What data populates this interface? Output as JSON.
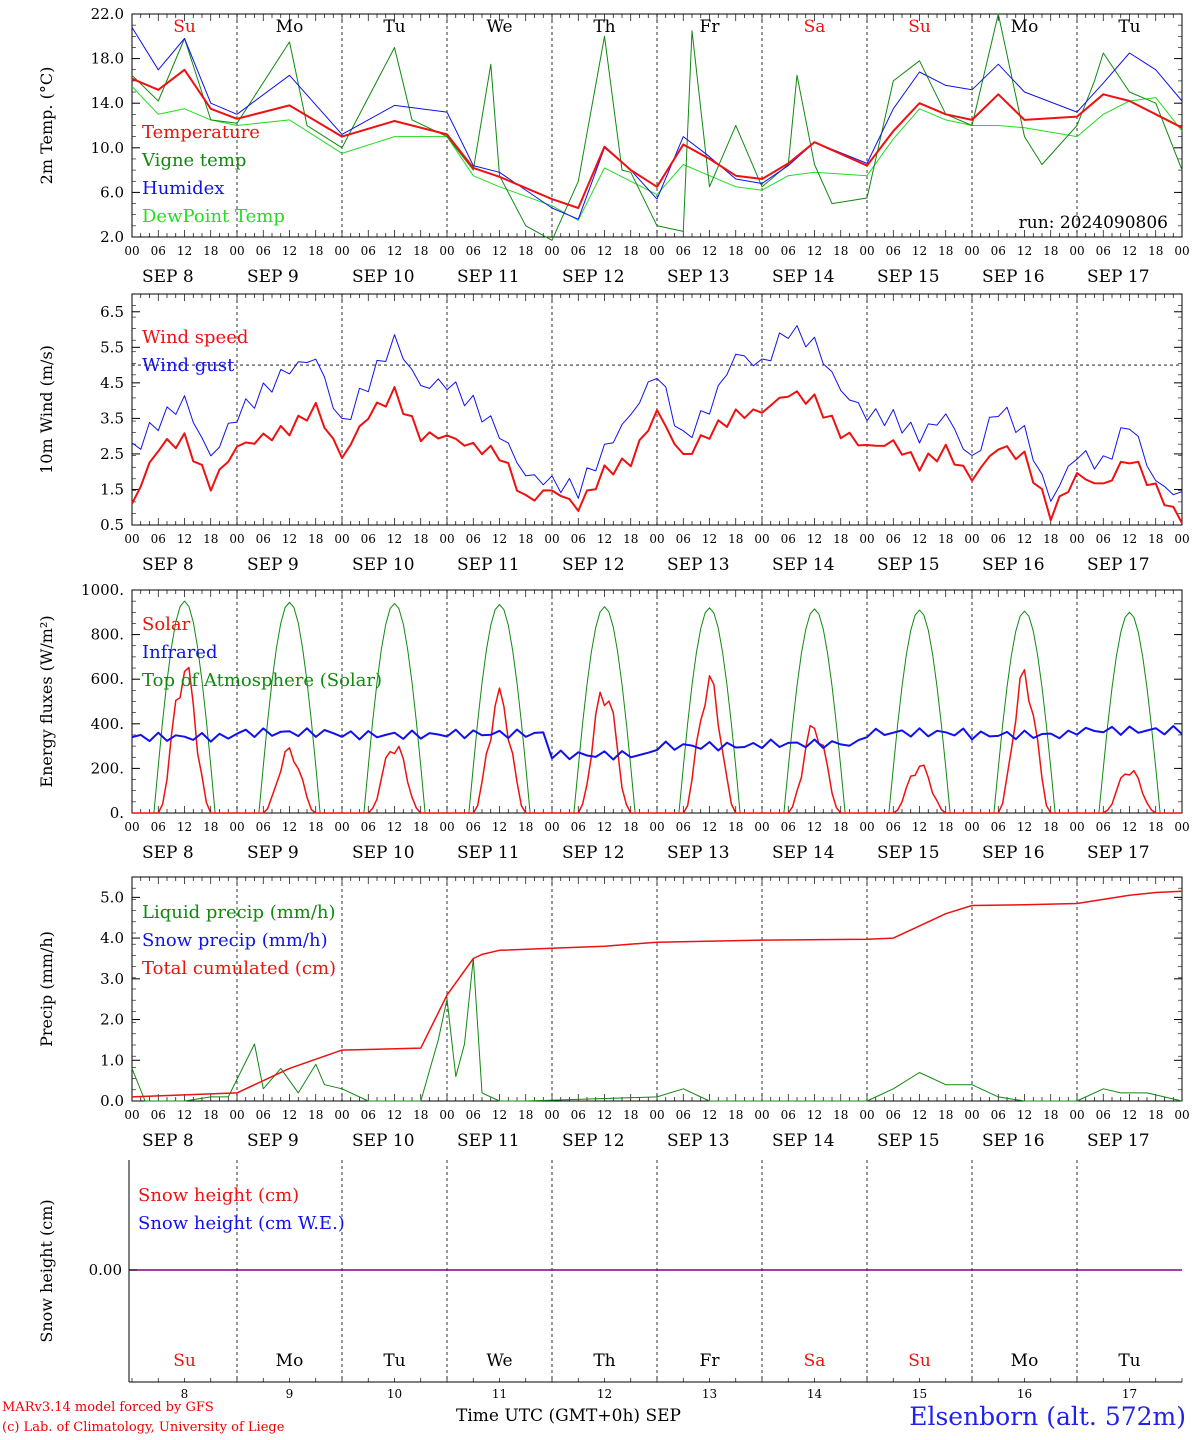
{
  "credits": {
    "line1": "MARv3.14 model forced by GFS",
    "line2": "(c) Lab. of Climatology, University of Liege"
  },
  "station": "Elsenborn (alt. 572m)",
  "x_axis_title": "Time UTC (GMT+0h) SEP",
  "run_label": "run: 2024090806",
  "colors": {
    "red": "#ee1111",
    "green": "#118811",
    "blue": "#1111ee",
    "lightgreen": "#22dd22",
    "purple": "#800080",
    "weekend": "#ee1111",
    "weekday": "#000000"
  },
  "days": {
    "names": [
      "Su",
      "Mo",
      "Tu",
      "We",
      "Th",
      "Fr",
      "Sa",
      "Su",
      "Mo",
      "Tu"
    ],
    "weekend": [
      true,
      false,
      false,
      false,
      false,
      false,
      true,
      true,
      false,
      false
    ],
    "dates": [
      "SEP  8",
      "SEP  9",
      "SEP 10",
      "SEP 11",
      "SEP 12",
      "SEP 13",
      "SEP 14",
      "SEP 15",
      "SEP 16",
      "SEP 17"
    ],
    "numbers": [
      "8",
      "9",
      "10",
      "11",
      "12",
      "13",
      "14",
      "15",
      "16",
      "17"
    ],
    "hour_ticks": [
      "00",
      "06",
      "12",
      "18"
    ],
    "final_tick": "00"
  },
  "chart_data": [
    {
      "type": "line",
      "ylabel": "2m Temp. (°C)",
      "ylim": [
        2,
        22
      ],
      "yticks": [
        "22.0",
        "18.0",
        "14.0",
        "10.0",
        "6.0",
        "2.0"
      ],
      "x_unit": "hours since SEP 8 00 UTC",
      "series": [
        {
          "name": "Temperature",
          "color": "red",
          "width": 2,
          "x": [
            0,
            6,
            12,
            18,
            24,
            36,
            48,
            60,
            72,
            78,
            84,
            96,
            102,
            108,
            114,
            120,
            126,
            132,
            138,
            144,
            150,
            156,
            168,
            174,
            180,
            186,
            192,
            198,
            204,
            216,
            222,
            228,
            234,
            240
          ],
          "y": [
            16.2,
            15.2,
            17.0,
            13.5,
            12.6,
            13.8,
            11.0,
            12.4,
            11.2,
            8.2,
            7.4,
            5.4,
            4.6,
            10.1,
            8.0,
            6.5,
            10.3,
            9.0,
            7.5,
            7.2,
            8.6,
            10.5,
            8.4,
            11.5,
            14.0,
            13.0,
            12.5,
            14.8,
            12.5,
            12.8,
            14.8,
            14.2,
            13.0,
            11.8
          ]
        },
        {
          "name": "Vigne temp",
          "color": "green",
          "width": 1,
          "x": [
            0,
            6,
            12,
            18,
            24,
            36,
            40,
            48,
            60,
            64,
            72,
            78,
            82,
            84,
            90,
            96,
            102,
            108,
            112,
            114,
            120,
            126,
            128,
            132,
            138,
            144,
            150,
            152,
            156,
            160,
            168,
            174,
            180,
            186,
            192,
            198,
            204,
            208,
            216,
            220,
            222,
            228,
            234,
            240
          ],
          "y": [
            16.5,
            14.2,
            19.8,
            12.5,
            12.2,
            19.5,
            12.0,
            10.0,
            19.0,
            12.5,
            11.0,
            8.0,
            17.5,
            7.5,
            3.0,
            1.5,
            7.0,
            20.0,
            8.0,
            7.8,
            3.0,
            2.5,
            20.5,
            6.5,
            12.0,
            6.5,
            8.5,
            16.5,
            8.5,
            5.0,
            5.5,
            16.0,
            17.8,
            13.0,
            12.0,
            22.0,
            11.0,
            8.5,
            12.0,
            16.0,
            18.5,
            15.0,
            14.0,
            8.0
          ]
        },
        {
          "name": "Humidex",
          "color": "blue",
          "width": 1,
          "x": [
            0,
            6,
            12,
            18,
            24,
            36,
            48,
            60,
            72,
            78,
            84,
            96,
            102,
            108,
            114,
            120,
            126,
            132,
            138,
            144,
            150,
            156,
            168,
            174,
            180,
            186,
            192,
            198,
            204,
            216,
            222,
            228,
            234,
            240
          ],
          "y": [
            20.8,
            17.0,
            19.8,
            14.0,
            13.0,
            16.5,
            11.2,
            13.8,
            13.2,
            8.4,
            7.8,
            4.6,
            3.6,
            10.0,
            8.0,
            5.4,
            11.0,
            9.2,
            7.2,
            6.8,
            8.4,
            10.5,
            8.6,
            13.5,
            16.8,
            15.6,
            15.2,
            17.5,
            15.0,
            13.2,
            15.8,
            18.5,
            17.0,
            14.2
          ]
        },
        {
          "name": "DewPoint Temp",
          "color": "lightgreen",
          "width": 1,
          "x": [
            0,
            6,
            12,
            18,
            24,
            36,
            48,
            60,
            72,
            78,
            84,
            96,
            102,
            108,
            114,
            120,
            126,
            132,
            138,
            144,
            150,
            156,
            168,
            174,
            180,
            186,
            192,
            198,
            204,
            216,
            222,
            228,
            234,
            240
          ],
          "y": [
            15.5,
            13.0,
            13.5,
            12.5,
            12.0,
            12.5,
            9.5,
            11.0,
            11.0,
            7.5,
            6.5,
            4.8,
            3.5,
            8.2,
            7.0,
            5.8,
            8.5,
            7.5,
            6.5,
            6.2,
            7.5,
            7.8,
            7.5,
            10.8,
            13.5,
            12.5,
            12.0,
            12.0,
            11.8,
            11.0,
            13.0,
            14.2,
            14.5,
            11.5
          ]
        }
      ]
    },
    {
      "type": "line",
      "ylabel": "10m Wind (m/s)",
      "ylim": [
        0.5,
        7.0
      ],
      "yticks": [
        "6.5",
        "5.5",
        "4.5",
        "3.5",
        "2.5",
        "1.5",
        "0.5"
      ],
      "reference_line": 5.0,
      "x_unit": "hours since SEP 8 00 UTC",
      "series": [
        {
          "name": "Wind speed",
          "color": "red",
          "width": 2,
          "x": [
            0,
            6,
            12,
            18,
            24,
            36,
            42,
            48,
            54,
            60,
            66,
            72,
            78,
            84,
            90,
            96,
            102,
            108,
            114,
            120,
            126,
            132,
            138,
            144,
            150,
            156,
            162,
            168,
            174,
            180,
            186,
            192,
            198,
            204,
            210,
            216,
            222,
            228,
            234,
            240
          ],
          "y": [
            1.1,
            2.7,
            2.9,
            1.6,
            2.7,
            3.2,
            3.8,
            2.4,
            3.6,
            4.2,
            3.0,
            3.0,
            2.7,
            2.5,
            1.2,
            1.5,
            1.0,
            2.0,
            2.3,
            3.7,
            2.4,
            3.1,
            3.6,
            3.7,
            4.2,
            4.0,
            3.1,
            2.7,
            2.8,
            2.2,
            2.6,
            1.8,
            2.7,
            2.4,
            0.8,
            1.9,
            1.6,
            2.4,
            1.5,
            0.6
          ]
        },
        {
          "name": "Wind gust",
          "color": "blue",
          "width": 1,
          "x": [
            0,
            6,
            12,
            18,
            24,
            36,
            42,
            48,
            54,
            60,
            66,
            72,
            78,
            84,
            90,
            96,
            102,
            108,
            114,
            120,
            126,
            132,
            138,
            144,
            150,
            156,
            162,
            168,
            174,
            180,
            186,
            192,
            198,
            204,
            210,
            216,
            222,
            228,
            234,
            240
          ],
          "y": [
            2.6,
            3.4,
            4.0,
            2.4,
            3.6,
            4.9,
            5.2,
            3.3,
            4.5,
            5.7,
            4.4,
            4.5,
            3.9,
            3.1,
            1.9,
            1.7,
            1.5,
            2.6,
            3.6,
            4.8,
            2.9,
            3.8,
            5.3,
            5.0,
            6.0,
            5.6,
            4.3,
            3.6,
            3.5,
            3.0,
            3.6,
            2.3,
            3.8,
            3.1,
            1.2,
            2.5,
            2.2,
            3.4,
            1.7,
            1.3
          ]
        }
      ]
    },
    {
      "type": "line",
      "ylabel": "Energy fluxes (W/m²)",
      "ylim": [
        0,
        1000
      ],
      "yticks": [
        "1000.",
        "800.",
        "600.",
        "400.",
        "200.",
        "0."
      ],
      "x_unit": "hours since SEP 8 00 UTC",
      "series": [
        {
          "name": "Solar",
          "color": "red",
          "width": 1.5,
          "daily_peak": [
            700,
            300,
            330,
            560,
            600,
            630,
            420,
            230,
            660,
            210
          ],
          "infrared_level": [
            340,
            360,
            350,
            355,
            260,
            300,
            310,
            360,
            350,
            370
          ]
        },
        {
          "name": "Infrared",
          "color": "blue",
          "width": 2
        },
        {
          "name": "Top of Atmosphere (Solar)",
          "color": "green",
          "width": 1,
          "daily_peak": [
            950,
            945,
            940,
            935,
            925,
            920,
            915,
            910,
            905,
            900
          ]
        }
      ]
    },
    {
      "type": "line",
      "ylabel": "Precip (mm/h)",
      "ylim": [
        0,
        5.5
      ],
      "yticks": [
        "5.0",
        "4.0",
        "3.0",
        "2.0",
        "1.0",
        "0.0"
      ],
      "x_unit": "hours since SEP 8 00 UTC",
      "series": [
        {
          "name": "Liquid precip (mm/h)",
          "color": "green",
          "width": 1,
          "x": [
            0,
            3,
            6,
            12,
            18,
            22,
            28,
            30,
            34,
            38,
            42,
            44,
            48,
            54,
            66,
            70,
            72,
            74,
            76,
            78,
            80,
            84,
            90,
            120,
            126,
            132,
            144,
            168,
            174,
            180,
            186,
            192,
            198,
            204,
            216,
            222,
            226,
            232,
            240
          ],
          "y": [
            0.8,
            0.0,
            0.0,
            0.0,
            0.1,
            0.1,
            1.4,
            0.3,
            0.8,
            0.2,
            0.9,
            0.4,
            0.3,
            0.0,
            0.0,
            1.5,
            2.5,
            0.6,
            1.4,
            3.5,
            0.2,
            0.0,
            0.0,
            0.1,
            0.3,
            0.0,
            0.0,
            0.0,
            0.3,
            0.7,
            0.4,
            0.4,
            0.1,
            0.0,
            0.0,
            0.3,
            0.2,
            0.2,
            0.0
          ]
        },
        {
          "name": "Snow precip (mm/h)",
          "color": "blue",
          "width": 1
        },
        {
          "name": "Total cumulated (cm)",
          "color": "red",
          "width": 1.5,
          "x": [
            0,
            24,
            36,
            48,
            66,
            72,
            78,
            80,
            84,
            96,
            108,
            120,
            144,
            168,
            174,
            180,
            186,
            192,
            204,
            216,
            222,
            228,
            234,
            240
          ],
          "y": [
            0.1,
            0.2,
            0.8,
            1.25,
            1.3,
            2.6,
            3.5,
            3.6,
            3.7,
            3.75,
            3.8,
            3.9,
            3.95,
            3.97,
            4.0,
            4.3,
            4.6,
            4.8,
            4.82,
            4.85,
            4.95,
            5.05,
            5.12,
            5.15
          ]
        }
      ]
    },
    {
      "type": "line",
      "ylabel": "Snow height (cm)",
      "yticks": [
        "0.00"
      ],
      "series": [
        {
          "name": "Snow height (cm)",
          "color": "red"
        },
        {
          "name": "Snow height (cm W.E.)",
          "color": "blue"
        }
      ],
      "line_value": 0.0
    }
  ]
}
